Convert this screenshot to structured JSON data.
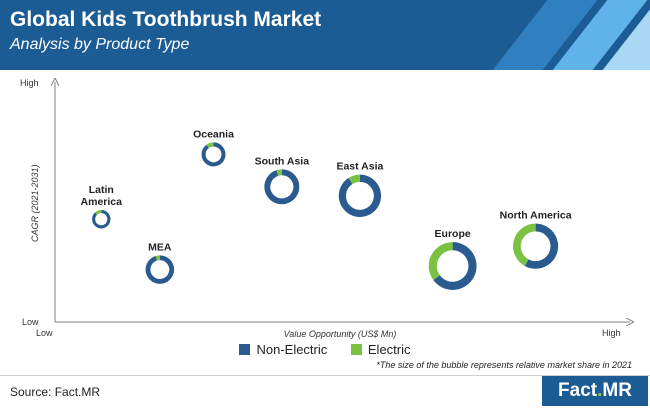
{
  "header": {
    "title": "Global Kids Toothbrush Market",
    "subtitle": "Analysis by Product Type"
  },
  "colors": {
    "header_bg": "#1b5c95",
    "non_electric": "#2a5a8e",
    "electric": "#7bc242",
    "axis": "#7f7f7f"
  },
  "chart_data": {
    "type": "bubble-donut",
    "xlabel": "Value Opportunity (US$ Mn)",
    "ylabel": "CAGR (2021-2031)",
    "x_ticks": {
      "low": "Low",
      "high": "High"
    },
    "y_ticks": {
      "low": "Low",
      "high": "High"
    },
    "series": [
      {
        "name": "Non-Electric"
      },
      {
        "name": "Electric"
      }
    ],
    "points": [
      {
        "label": "Latin America",
        "x": 0.06,
        "y": 0.46,
        "size": 0.2,
        "electric_share": 0.12
      },
      {
        "label": "MEA",
        "x": 0.18,
        "y": 0.18,
        "size": 0.31,
        "electric_share": 0.05
      },
      {
        "label": "Oceania",
        "x": 0.29,
        "y": 0.82,
        "size": 0.26,
        "electric_share": 0.1
      },
      {
        "label": "South Asia",
        "x": 0.43,
        "y": 0.64,
        "size": 0.38,
        "electric_share": 0.05
      },
      {
        "label": "East Asia",
        "x": 0.59,
        "y": 0.59,
        "size": 0.46,
        "electric_share": 0.09
      },
      {
        "label": "Europe",
        "x": 0.78,
        "y": 0.2,
        "size": 0.52,
        "electric_share": 0.35
      },
      {
        "label": "North America",
        "x": 0.95,
        "y": 0.31,
        "size": 0.49,
        "electric_share": 0.42
      }
    ]
  },
  "legend": {
    "non_electric": "Non-Electric",
    "electric": "Electric"
  },
  "note": "*The size of the bubble represents relative market share in 2021",
  "source": "Source: Fact.MR",
  "logo": {
    "fact": "Fact",
    "dot": ".",
    "mr": "MR"
  }
}
